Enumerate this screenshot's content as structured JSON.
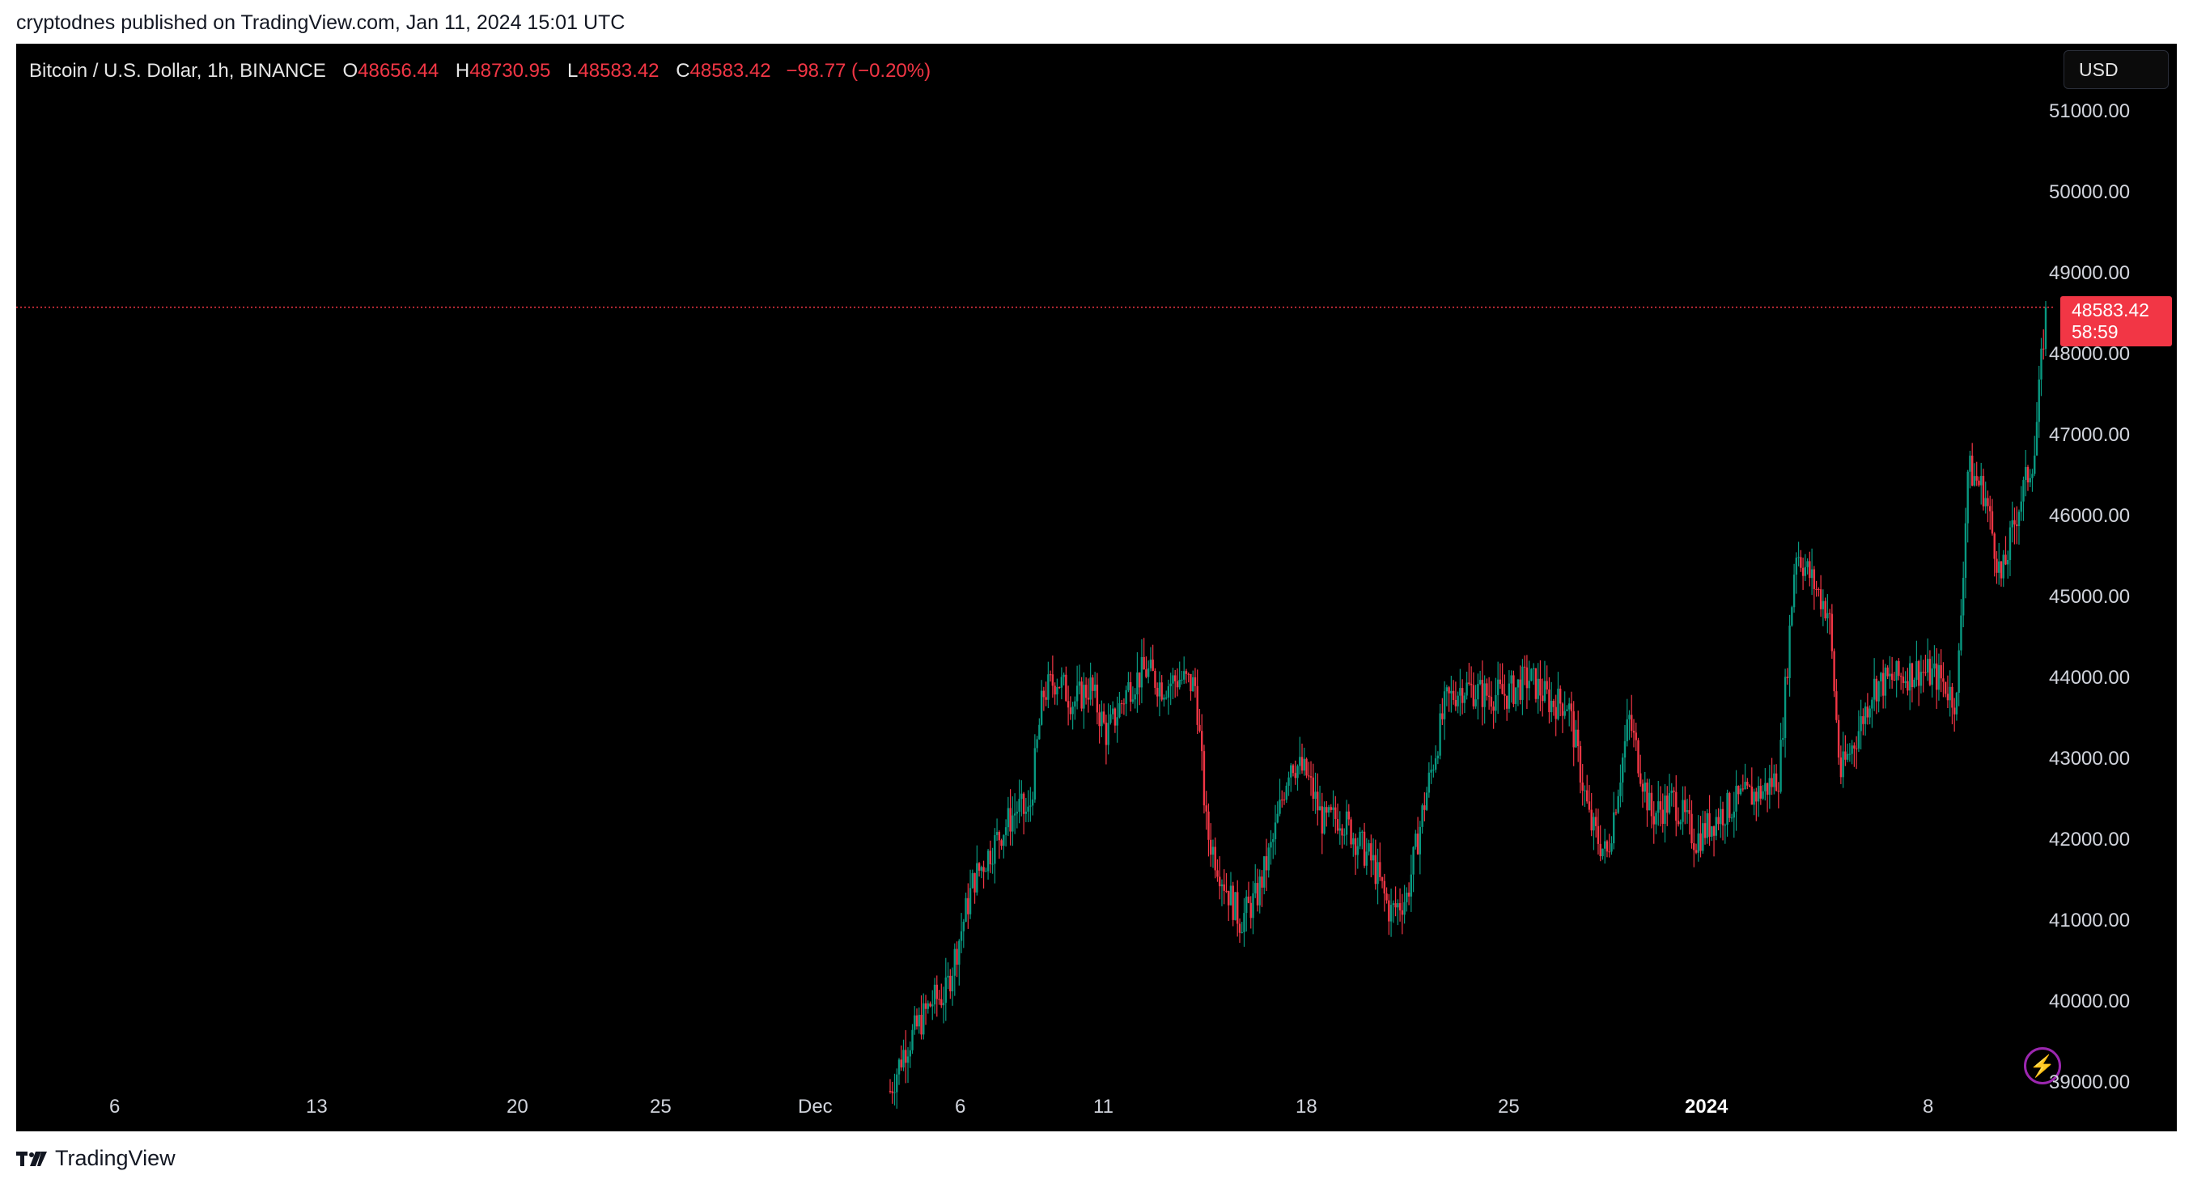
{
  "published_line": "cryptodnes published on TradingView.com, Jan 11, 2024 15:01 UTC",
  "legend": {
    "symbol": "Bitcoin / U.S. Dollar, 1h, BINANCE",
    "open_label": "O",
    "open": "48656.44",
    "high_label": "H",
    "high": "48730.95",
    "low_label": "L",
    "low": "48583.42",
    "close_label": "C",
    "close": "48583.42",
    "change": "−98.77 (−0.20%)"
  },
  "currency_button": "USD",
  "last_price": {
    "price": "48583.42",
    "countdown": "58:59",
    "value": 48583.42
  },
  "brand": "TradingView",
  "colors": {
    "up": "#089981",
    "down": "#f23645",
    "background": "#000000"
  },
  "icons": {
    "bolt": "lightning-bolt-icon",
    "logo": "tradingview-logo-icon"
  },
  "chart_data": {
    "type": "candlestick",
    "x_ticks": [
      "6",
      "13",
      "20",
      "25",
      "Dec",
      "6",
      "11",
      "18",
      "25",
      "2024",
      "8"
    ],
    "y_ticks": [
      "51000.00",
      "50000.00",
      "49000.00",
      "48000.00",
      "47000.00",
      "46000.00",
      "45000.00",
      "44000.00",
      "43000.00",
      "42000.00",
      "41000.00",
      "40000.00",
      "39000.00"
    ],
    "ylim": [
      38900,
      51200
    ],
    "series_path": [
      [
        0.0,
        38900
      ],
      [
        0.5,
        39400
      ],
      [
        1.0,
        39700
      ],
      [
        1.5,
        40000
      ],
      [
        2.0,
        40100
      ],
      [
        3.0,
        41500
      ],
      [
        4.0,
        42100
      ],
      [
        4.6,
        42400
      ],
      [
        5.0,
        42300
      ],
      [
        5.5,
        43800
      ],
      [
        6.0,
        44000
      ],
      [
        6.6,
        43700
      ],
      [
        7.2,
        43900
      ],
      [
        7.8,
        43300
      ],
      [
        8.6,
        43900
      ],
      [
        9.2,
        44100
      ],
      [
        9.8,
        43900
      ],
      [
        10.4,
        44000
      ],
      [
        11.0,
        43900
      ],
      [
        11.4,
        42100
      ],
      [
        12.0,
        41500
      ],
      [
        12.6,
        41000
      ],
      [
        13.2,
        41300
      ],
      [
        13.8,
        42000
      ],
      [
        14.4,
        43000
      ],
      [
        15.0,
        42800
      ],
      [
        15.6,
        42200
      ],
      [
        16.2,
        42300
      ],
      [
        16.8,
        42000
      ],
      [
        17.4,
        41700
      ],
      [
        18.0,
        41100
      ],
      [
        18.6,
        41300
      ],
      [
        19.2,
        42400
      ],
      [
        20.0,
        43700
      ],
      [
        20.6,
        43900
      ],
      [
        21.4,
        43800
      ],
      [
        22.2,
        43800
      ],
      [
        23.0,
        44000
      ],
      [
        23.8,
        43700
      ],
      [
        24.4,
        43700
      ],
      [
        25.2,
        42200
      ],
      [
        25.8,
        41800
      ],
      [
        26.6,
        43500
      ],
      [
        27.4,
        42300
      ],
      [
        28.2,
        42500
      ],
      [
        29.0,
        42000
      ],
      [
        29.8,
        42300
      ],
      [
        30.6,
        42500
      ],
      [
        31.4,
        42600
      ],
      [
        32.0,
        42800
      ],
      [
        32.6,
        45600
      ],
      [
        33.2,
        45200
      ],
      [
        33.8,
        44800
      ],
      [
        34.2,
        42800
      ],
      [
        34.8,
        43300
      ],
      [
        35.4,
        43900
      ],
      [
        36.2,
        44000
      ],
      [
        37.0,
        44100
      ],
      [
        37.8,
        44000
      ],
      [
        38.4,
        43700
      ],
      [
        38.8,
        46600
      ],
      [
        39.4,
        46300
      ],
      [
        40.0,
        45200
      ],
      [
        40.6,
        46100
      ],
      [
        41.2,
        46800
      ],
      [
        41.6,
        48583
      ]
    ]
  }
}
